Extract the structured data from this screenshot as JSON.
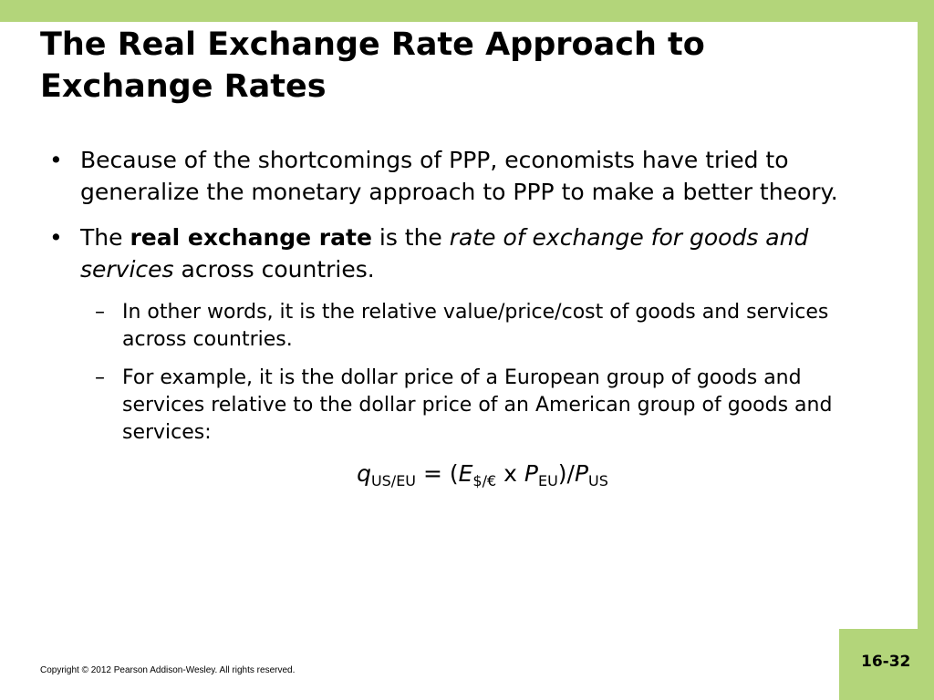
{
  "slide": {
    "title": "The Real Exchange Rate Approach to Exchange Rates",
    "bullets": [
      {
        "text": "Because of the shortcomings of PPP, economists have tried to generalize the monetary approach to PPP to make a better theory."
      },
      {
        "part1": "The ",
        "bold": "real exchange rate",
        "part2": " is the ",
        "italic": "rate of exchange for goods and services",
        "part3": " across countries."
      }
    ],
    "subbullets": [
      "In other words, it is the relative value/price/cost of goods and services across countries.",
      "For example, it is the dollar price of a European group of goods and services relative to the dollar price of an American group of goods and services:"
    ],
    "formula": {
      "q": "q",
      "q_sub": "US/EU",
      "equals": " = (",
      "E": "E",
      "E_sub": "$/€",
      "times": " x ",
      "P1": "P",
      "P1_sub": "EU",
      "slash": ")/",
      "P2": "P",
      "P2_sub": "US"
    },
    "bullet_mark": "•",
    "sub_mark": "–"
  },
  "footer": {
    "copyright": "Copyright © 2012 Pearson Addison-Wesley. All rights reserved.",
    "page_number": "16-32"
  },
  "colors": {
    "accent_green": "#b3d57a",
    "background": "#ffffff"
  }
}
